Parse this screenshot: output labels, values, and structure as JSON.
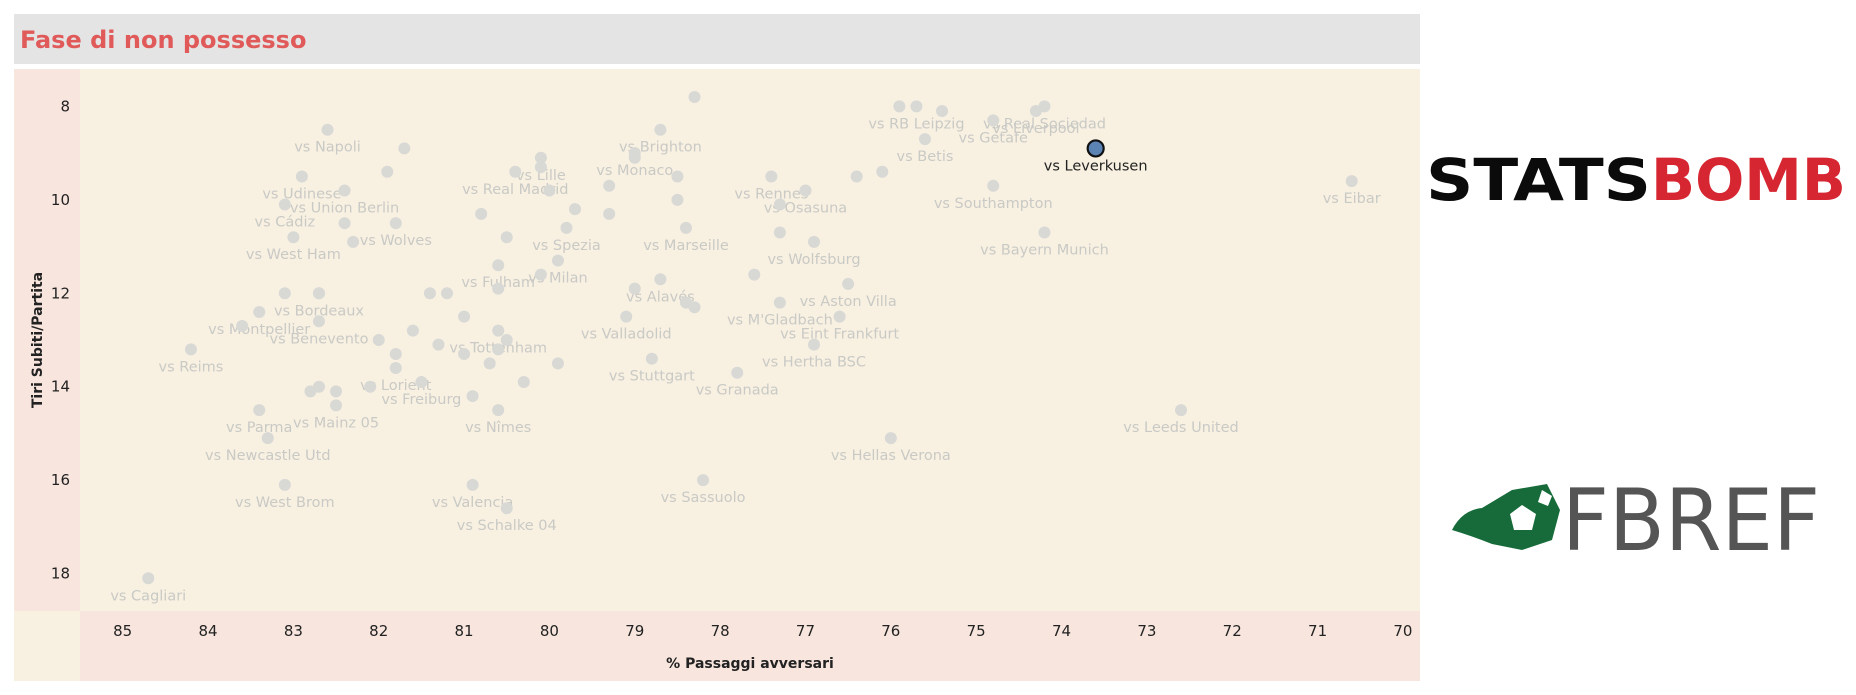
{
  "header": {
    "title": "Fase di non possesso"
  },
  "colors": {
    "panel": "#f8f1e2",
    "axis_band": "#f8e6de",
    "point": "#d8d8d5",
    "label": "#c9c9c5",
    "highlight_fill": "#5b84b5",
    "highlight_stroke": "#111111",
    "title": "#e05a5a"
  },
  "logos": {
    "statsbomb_left": "STATS",
    "statsbomb_right": "BOMB",
    "fbref": "FBREF"
  },
  "chart_data": {
    "type": "scatter",
    "title": "",
    "xlabel": "% Passaggi avversari",
    "ylabel": "Tiri Subiti/Partita",
    "xlim": [
      85.5,
      69.8
    ],
    "ylim": [
      7.2,
      18.8
    ],
    "x_reversed": true,
    "y_reversed": true,
    "x_ticks": [
      85,
      84,
      83,
      82,
      81,
      80,
      79,
      78,
      77,
      76,
      75,
      74,
      73,
      72,
      71,
      70
    ],
    "y_ticks": [
      8,
      10,
      12,
      14,
      16,
      18
    ],
    "grid": false,
    "highlight": "vs Leverkusen",
    "points": [
      {
        "label": "vs Real Sociedad",
        "x": 74.2,
        "y": 8.0
      },
      {
        "label": "vs Liverpool",
        "x": 74.3,
        "y": 8.1
      },
      {
        "label": "vs Getafe",
        "x": 74.8,
        "y": 8.3
      },
      {
        "label": "vs RB Leipzig",
        "x": 75.7,
        "y": 8.0
      },
      {
        "label": "vs Betis",
        "x": 75.6,
        "y": 8.7
      },
      {
        "label": "vs Leverkusen",
        "x": 73.6,
        "y": 8.9
      },
      {
        "label": "vs Eibar",
        "x": 70.6,
        "y": 9.6
      },
      {
        "label": "vs Southampton",
        "x": 74.8,
        "y": 9.7
      },
      {
        "label": "vs Bayern Munich",
        "x": 74.2,
        "y": 10.7
      },
      {
        "label": "vs Brighton",
        "x": 78.7,
        "y": 8.5
      },
      {
        "label": "vs Monaco",
        "x": 79.0,
        "y": 9.0
      },
      {
        "label": "vs Rennes",
        "x": 77.4,
        "y": 9.5
      },
      {
        "label": "vs Osasuna",
        "x": 77.0,
        "y": 9.8
      },
      {
        "label": "vs Lille",
        "x": 80.1,
        "y": 9.1
      },
      {
        "label": "vs Real Madrid",
        "x": 80.4,
        "y": 9.4
      },
      {
        "label": "vs Napoli",
        "x": 82.6,
        "y": 8.5
      },
      {
        "label": "vs Udinese",
        "x": 82.9,
        "y": 9.5
      },
      {
        "label": "vs Union Berlin",
        "x": 82.4,
        "y": 9.8
      },
      {
        "label": "vs Cádiz",
        "x": 83.1,
        "y": 10.1
      },
      {
        "label": "vs Wolves",
        "x": 81.8,
        "y": 10.5
      },
      {
        "label": "vs West Ham",
        "x": 83.0,
        "y": 10.8
      },
      {
        "label": "vs Spezia",
        "x": 79.8,
        "y": 10.6
      },
      {
        "label": "vs Milan",
        "x": 79.9,
        "y": 11.3
      },
      {
        "label": "vs Fulham",
        "x": 80.6,
        "y": 11.4
      },
      {
        "label": "vs Marseille",
        "x": 78.4,
        "y": 10.6
      },
      {
        "label": "vs Wolfsburg",
        "x": 76.9,
        "y": 10.9
      },
      {
        "label": "vs Alavés",
        "x": 78.7,
        "y": 11.7
      },
      {
        "label": "vs Aston Villa",
        "x": 76.5,
        "y": 11.8
      },
      {
        "label": "vs Bordeaux",
        "x": 82.7,
        "y": 12.0
      },
      {
        "label": "vs Montpellier",
        "x": 83.4,
        "y": 12.4
      },
      {
        "label": "vs Tottenham",
        "x": 80.6,
        "y": 12.8
      },
      {
        "label": "vs M'Gladbach",
        "x": 77.3,
        "y": 12.2
      },
      {
        "label": "vs Eint Frankfurt",
        "x": 76.6,
        "y": 12.5
      },
      {
        "label": "vs Benevento",
        "x": 82.7,
        "y": 12.6
      },
      {
        "label": "vs Valladolid",
        "x": 79.1,
        "y": 12.5
      },
      {
        "label": "vs Reims",
        "x": 84.2,
        "y": 13.2
      },
      {
        "label": "vs Lorient",
        "x": 81.8,
        "y": 13.6
      },
      {
        "label": "vs Hertha BSC",
        "x": 76.9,
        "y": 13.1
      },
      {
        "label": "vs Stuttgart",
        "x": 78.8,
        "y": 13.4
      },
      {
        "label": "vs Granada",
        "x": 77.8,
        "y": 13.7
      },
      {
        "label": "vs Freiburg",
        "x": 81.5,
        "y": 13.9
      },
      {
        "label": "vs Parma",
        "x": 83.4,
        "y": 14.5
      },
      {
        "label": "vs Mainz 05",
        "x": 82.5,
        "y": 14.4
      },
      {
        "label": "vs Nîmes",
        "x": 80.6,
        "y": 14.5
      },
      {
        "label": "vs Leeds United",
        "x": 72.6,
        "y": 14.5
      },
      {
        "label": "vs Newcastle Utd",
        "x": 83.3,
        "y": 15.1
      },
      {
        "label": "vs Hellas Verona",
        "x": 76.0,
        "y": 15.1
      },
      {
        "label": "vs West Brom",
        "x": 83.1,
        "y": 16.1
      },
      {
        "label": "vs Valencia",
        "x": 80.9,
        "y": 16.1
      },
      {
        "label": "vs Sassuolo",
        "x": 78.2,
        "y": 16.0
      },
      {
        "label": "vs Schalke 04",
        "x": 80.5,
        "y": 16.6
      },
      {
        "label": "vs Cagliari",
        "x": 84.7,
        "y": 18.1
      },
      {
        "label": "",
        "x": 78.3,
        "y": 7.8
      },
      {
        "label": "",
        "x": 75.4,
        "y": 8.1
      },
      {
        "label": "",
        "x": 75.9,
        "y": 8.0
      },
      {
        "label": "",
        "x": 79.0,
        "y": 9.1
      },
      {
        "label": "",
        "x": 78.5,
        "y": 9.5
      },
      {
        "label": "",
        "x": 78.5,
        "y": 10.0
      },
      {
        "label": "",
        "x": 79.3,
        "y": 9.7
      },
      {
        "label": "",
        "x": 80.1,
        "y": 9.3
      },
      {
        "label": "",
        "x": 80.0,
        "y": 9.8
      },
      {
        "label": "",
        "x": 79.7,
        "y": 10.2
      },
      {
        "label": "",
        "x": 79.3,
        "y": 10.3
      },
      {
        "label": "",
        "x": 80.8,
        "y": 10.3
      },
      {
        "label": "",
        "x": 81.9,
        "y": 9.4
      },
      {
        "label": "",
        "x": 82.4,
        "y": 10.5
      },
      {
        "label": "",
        "x": 82.3,
        "y": 10.9
      },
      {
        "label": "",
        "x": 81.7,
        "y": 8.9
      },
      {
        "label": "",
        "x": 80.5,
        "y": 10.8
      },
      {
        "label": "",
        "x": 80.6,
        "y": 11.9
      },
      {
        "label": "",
        "x": 80.1,
        "y": 11.6
      },
      {
        "label": "",
        "x": 79.0,
        "y": 11.9
      },
      {
        "label": "",
        "x": 78.4,
        "y": 12.2
      },
      {
        "label": "",
        "x": 78.3,
        "y": 12.3
      },
      {
        "label": "",
        "x": 77.6,
        "y": 11.6
      },
      {
        "label": "",
        "x": 77.3,
        "y": 10.1
      },
      {
        "label": "",
        "x": 77.3,
        "y": 10.7
      },
      {
        "label": "",
        "x": 76.4,
        "y": 9.5
      },
      {
        "label": "",
        "x": 76.1,
        "y": 9.4
      },
      {
        "label": "",
        "x": 81.4,
        "y": 12.0
      },
      {
        "label": "",
        "x": 81.2,
        "y": 12.0
      },
      {
        "label": "",
        "x": 81.0,
        "y": 12.5
      },
      {
        "label": "",
        "x": 81.6,
        "y": 12.8
      },
      {
        "label": "",
        "x": 81.3,
        "y": 13.1
      },
      {
        "label": "",
        "x": 81.0,
        "y": 13.3
      },
      {
        "label": "",
        "x": 81.8,
        "y": 13.3
      },
      {
        "label": "",
        "x": 82.0,
        "y": 13.0
      },
      {
        "label": "",
        "x": 80.7,
        "y": 13.5
      },
      {
        "label": "",
        "x": 80.6,
        "y": 13.2
      },
      {
        "label": "",
        "x": 80.5,
        "y": 13.0
      },
      {
        "label": "",
        "x": 80.3,
        "y": 13.9
      },
      {
        "label": "",
        "x": 79.9,
        "y": 13.5
      },
      {
        "label": "",
        "x": 80.9,
        "y": 14.2
      },
      {
        "label": "",
        "x": 82.1,
        "y": 14.0
      },
      {
        "label": "",
        "x": 82.7,
        "y": 14.0
      },
      {
        "label": "",
        "x": 82.5,
        "y": 14.1
      },
      {
        "label": "",
        "x": 82.8,
        "y": 14.1
      },
      {
        "label": "",
        "x": 83.6,
        "y": 12.7
      },
      {
        "label": "",
        "x": 83.1,
        "y": 12.0
      },
      {
        "label": "",
        "x": 82.7,
        "y": 12.0
      }
    ]
  }
}
